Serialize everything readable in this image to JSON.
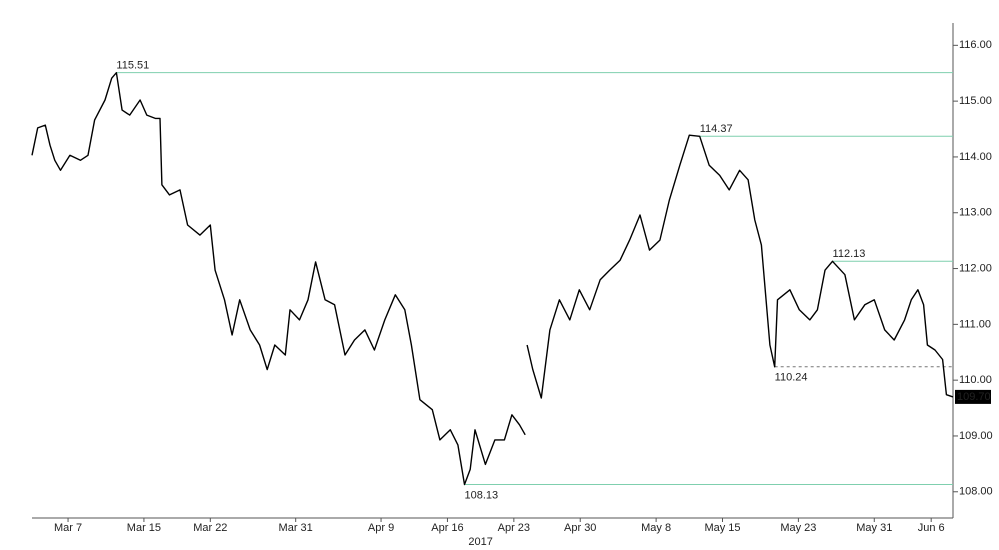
{
  "chart_data": {
    "type": "line",
    "color": "#000000",
    "level_color": "#7fcfae",
    "year_label": "2017",
    "x": [
      3.2,
      3.8,
      4.6,
      5.1,
      5.6,
      6.2,
      7.2,
      8.3,
      9.1,
      9.8,
      10.9,
      11.6,
      12.1,
      12.7,
      13.5,
      14.6,
      15.3,
      16.2,
      16.7,
      16.9,
      17.7,
      18.8,
      19.6,
      20.9,
      22.0,
      22.5,
      23.5,
      24.3,
      25.1,
      26.2,
      27.2,
      28.0,
      28.8,
      29.9,
      30.4,
      31.4,
      32.3,
      33.1,
      34.1,
      35.1,
      36.2,
      37.2,
      38.3,
      39.3,
      40.4,
      41.5,
      42.5,
      43.2,
      44.1,
      45.4,
      46.2,
      47.3,
      48.1,
      48.8,
      49.4,
      49.9,
      51.0,
      52.0,
      53.0,
      53.8,
      54.6,
      55.2,
      55.3,
      55.4,
      56.0,
      56.9,
      57.8,
      58.8,
      59.9,
      60.9,
      62.0,
      63.1,
      64.1,
      65.2,
      66.2,
      67.3,
      68.3,
      69.4,
      70.4,
      71.5,
      72.5,
      73.6,
      74.6,
      75.7,
      76.7,
      77.8,
      78.7,
      79.4,
      80.1,
      81.0,
      81.5,
      81.8,
      83.1,
      84.1,
      85.2,
      86.0,
      86.8,
      87.6,
      88.9,
      89.9,
      91.0,
      92.0,
      93.1,
      94.1,
      95.2,
      95.9,
      96.6,
      97.2,
      97.6,
      98.4,
      99.2,
      99.6,
      100.3
    ],
    "values": [
      114.03,
      114.52,
      114.57,
      114.21,
      113.94,
      113.76,
      114.03,
      113.94,
      114.03,
      114.66,
      115.02,
      115.41,
      115.51,
      114.84,
      114.75,
      115.02,
      114.75,
      114.69,
      114.69,
      113.5,
      113.32,
      113.41,
      112.78,
      112.6,
      112.78,
      111.97,
      111.44,
      110.81,
      111.44,
      110.9,
      110.63,
      110.19,
      110.63,
      110.45,
      111.26,
      111.08,
      111.44,
      112.12,
      111.44,
      111.35,
      110.45,
      110.72,
      110.9,
      110.54,
      111.08,
      111.53,
      111.26,
      110.63,
      109.65,
      109.47,
      108.93,
      109.11,
      108.84,
      108.13,
      108.4,
      109.11,
      108.49,
      108.93,
      108.93,
      109.38,
      109.2,
      109.02,
      null,
      110.63,
      110.19,
      109.68,
      110.9,
      111.44,
      111.08,
      111.62,
      111.26,
      111.8,
      111.97,
      112.15,
      112.51,
      112.96,
      112.33,
      112.51,
      113.23,
      113.85,
      114.39,
      114.37,
      113.85,
      113.67,
      113.41,
      113.76,
      113.59,
      112.87,
      112.42,
      110.63,
      110.24,
      111.44,
      111.62,
      111.26,
      111.08,
      111.26,
      111.97,
      112.13,
      111.89,
      111.08,
      111.35,
      111.44,
      110.9,
      110.72,
      111.08,
      111.44,
      111.62,
      111.35,
      110.63,
      110.54,
      110.37,
      109.74,
      109.7
    ],
    "xlim": [
      3.2,
      100.3
    ],
    "ylim": [
      107.53,
      116.4
    ],
    "xticks": [
      {
        "value": 7,
        "label": "Mar 7"
      },
      {
        "value": 15,
        "label": "Mar 15"
      },
      {
        "value": 22,
        "label": "Mar 22"
      },
      {
        "value": 31,
        "label": "Mar 31"
      },
      {
        "value": 40,
        "label": "Apr 9"
      },
      {
        "value": 47,
        "label": "Apr 16"
      },
      {
        "value": 54,
        "label": "Apr 23"
      },
      {
        "value": 61,
        "label": "Apr 30"
      },
      {
        "value": 69,
        "label": "May 8"
      },
      {
        "value": 76,
        "label": "May 15"
      },
      {
        "value": 84,
        "label": "May 23"
      },
      {
        "value": 92,
        "label": "May 31"
      },
      {
        "value": 98,
        "label": "Jun 6"
      }
    ],
    "yticks": [
      {
        "value": 108,
        "label": "108.00"
      },
      {
        "value": 109,
        "label": "109.00"
      },
      {
        "value": 110,
        "label": "110.00"
      },
      {
        "value": 111,
        "label": "111.00"
      },
      {
        "value": 112,
        "label": "112.00"
      },
      {
        "value": 113,
        "label": "113.00"
      },
      {
        "value": 114,
        "label": "114.00"
      },
      {
        "value": 115,
        "label": "115.00"
      },
      {
        "value": 116,
        "label": "116.00"
      }
    ],
    "levels": [
      {
        "value": 115.51,
        "label": "115.51",
        "x": 12.1,
        "style": "solid"
      },
      {
        "value": 114.37,
        "label": "114.37",
        "x": 73.6,
        "style": "solid"
      },
      {
        "value": 112.13,
        "label": "112.13",
        "x": 87.6,
        "style": "solid"
      },
      {
        "value": 108.13,
        "label": "108.13",
        "x": 48.8,
        "style": "solid"
      },
      {
        "value": 110.24,
        "label": "110.24",
        "x": 81.5,
        "style": "dashed"
      }
    ],
    "last_price": {
      "value": 109.7,
      "label": "109.70"
    }
  }
}
